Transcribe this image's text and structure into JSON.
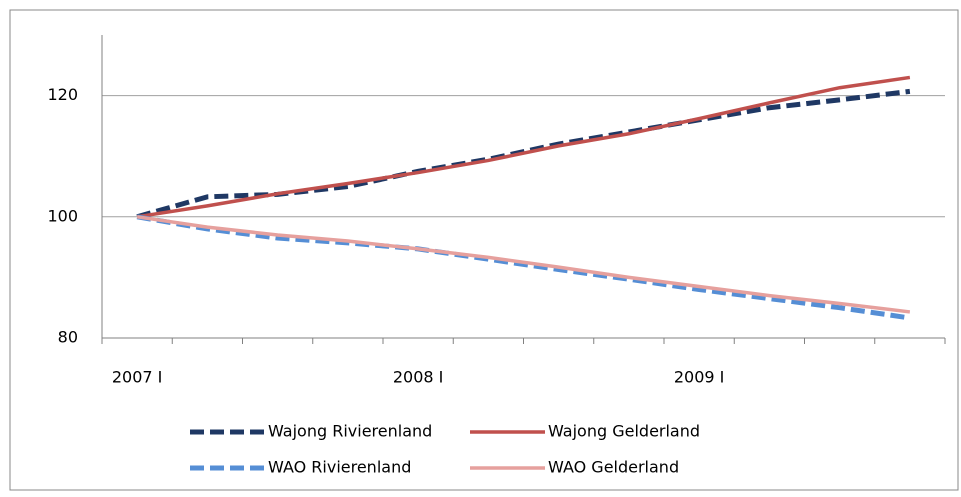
{
  "chart_data": {
    "type": "line",
    "categories": [
      "2007 I",
      null,
      null,
      null,
      "2008 I",
      null,
      null,
      null,
      "2009 I",
      null,
      null,
      null
    ],
    "series": [
      {
        "name": "Wajong Rivierenland",
        "color": "#1f3864",
        "dashed": true,
        "values": [
          100,
          103.3,
          103.7,
          105,
          107.5,
          109.5,
          112,
          114,
          116,
          118,
          119.3,
          120.7
        ]
      },
      {
        "name": "Wajong Gelderland",
        "color": "#c0504d",
        "dashed": false,
        "values": [
          100,
          101.8,
          103.8,
          105.5,
          107.3,
          109.3,
          111.7,
          113.7,
          116.2,
          118.8,
          121.3,
          123
        ]
      },
      {
        "name": "WAO Rivierenland",
        "color": "#558ed5",
        "dashed": true,
        "values": [
          100,
          98,
          96.5,
          95.7,
          94.7,
          93,
          91.3,
          89.7,
          88,
          86.5,
          85,
          83.3
        ]
      },
      {
        "name": "WAO Gelderland",
        "color": "#e6a09d",
        "dashed": false,
        "values": [
          100,
          98.3,
          97,
          96,
          94.7,
          93.3,
          91.7,
          90,
          88.5,
          87,
          85.7,
          84.3
        ]
      }
    ],
    "ylim": [
      80,
      130
    ],
    "yticks": [
      80,
      100,
      120
    ],
    "grid": true,
    "legend": "bottom"
  }
}
